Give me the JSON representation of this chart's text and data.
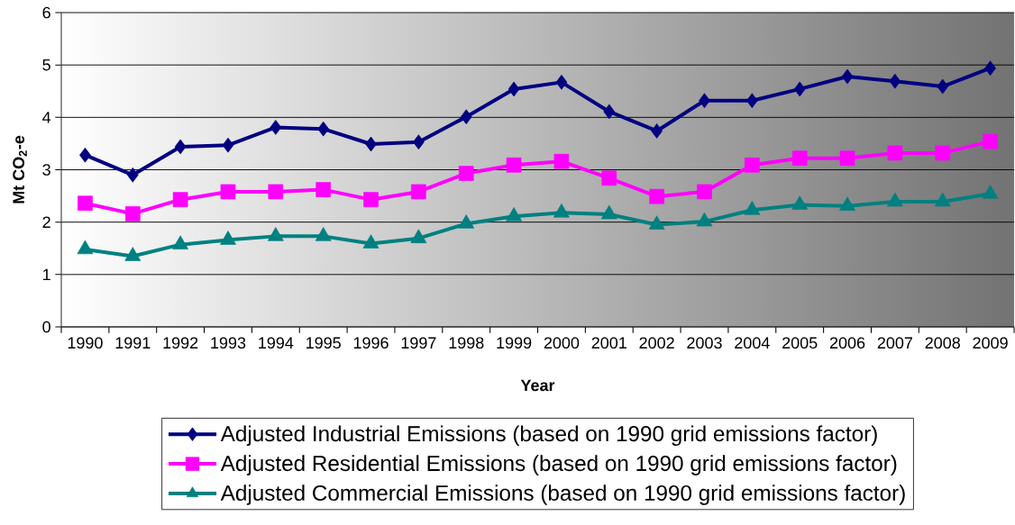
{
  "chart_data": {
    "type": "line",
    "xlabel": "Year",
    "ylabel": "Mt CO$_{2}$-e",
    "categories": [
      "1990",
      "1991",
      "1992",
      "1993",
      "1994",
      "1995",
      "1996",
      "1997",
      "1998",
      "1999",
      "2000",
      "2001",
      "2002",
      "2003",
      "2004",
      "2005",
      "2006",
      "2007",
      "2008",
      "2009"
    ],
    "ylim": [
      0,
      6
    ],
    "yticks": [
      0,
      1,
      2,
      3,
      4,
      5,
      6
    ],
    "grid": "y",
    "legend": "bottom",
    "series": [
      {
        "name": "Adjusted Industrial Emissions (based on 1990 grid emissions factor)",
        "color": "#000080",
        "marker": "diamond",
        "values": [
          3.28,
          2.9,
          3.44,
          3.47,
          3.81,
          3.78,
          3.49,
          3.53,
          4.01,
          4.54,
          4.67,
          4.11,
          3.74,
          4.32,
          4.32,
          4.54,
          4.78,
          4.69,
          4.59,
          4.94
        ]
      },
      {
        "name": "Adjusted Residential Emissions (based on 1990 grid emissions factor)",
        "color": "#ff00ff",
        "marker": "square",
        "values": [
          2.36,
          2.16,
          2.43,
          2.58,
          2.58,
          2.62,
          2.43,
          2.58,
          2.93,
          3.09,
          3.16,
          2.84,
          2.49,
          2.58,
          3.09,
          3.22,
          3.22,
          3.32,
          3.32,
          3.54
        ]
      },
      {
        "name": "Adjusted Commercial Emissions (based on 1990 grid emissions factor)",
        "color": "#008080",
        "marker": "triangle",
        "values": [
          1.48,
          1.35,
          1.57,
          1.66,
          1.73,
          1.73,
          1.59,
          1.69,
          1.97,
          2.11,
          2.18,
          2.15,
          1.95,
          2.01,
          2.23,
          2.33,
          2.31,
          2.39,
          2.39,
          2.54
        ]
      }
    ]
  }
}
